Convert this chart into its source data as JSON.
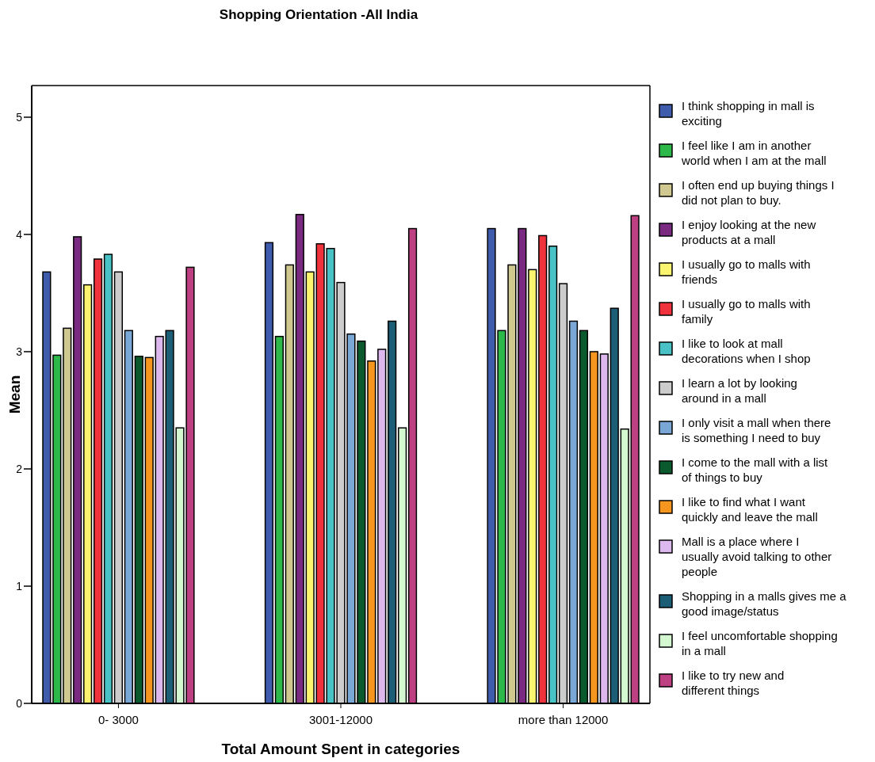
{
  "chart_data": {
    "type": "bar",
    "title": "Shopping Orientation -All India",
    "xlabel": "Total Amount Spent in categories",
    "ylabel": "Mean",
    "categories": [
      "0- 3000",
      "3001-12000",
      "more than 12000"
    ],
    "ylim": [
      0,
      5.27
    ],
    "yticks": [
      0,
      1,
      2,
      3,
      4,
      5
    ],
    "grid": false,
    "legend": "right",
    "series": [
      {
        "name": "I think shopping in mall is exciting",
        "color": "#3f5bab",
        "values": [
          3.68,
          3.93,
          4.05
        ]
      },
      {
        "name": "I feel like I am in another world when I am at the mall",
        "color": "#2db84a",
        "values": [
          2.97,
          3.13,
          3.18
        ]
      },
      {
        "name": "I often end up buying things I did not plan to buy.",
        "color": "#cfc98f",
        "values": [
          3.2,
          3.74,
          3.74
        ]
      },
      {
        "name": "I enjoy looking at the new products at a mall",
        "color": "#7a2a80",
        "values": [
          3.98,
          4.17,
          4.05
        ]
      },
      {
        "name": "I usually go to malls with friends",
        "color": "#fbf46f",
        "values": [
          3.57,
          3.68,
          3.7
        ]
      },
      {
        "name": "I usually go to malls with family",
        "color": "#f0323c",
        "values": [
          3.79,
          3.92,
          3.99
        ]
      },
      {
        "name": "I like to look at mall decorations when I shop",
        "color": "#48c2c4",
        "values": [
          3.83,
          3.88,
          3.9
        ]
      },
      {
        "name": "I learn a lot by looking around in a mall",
        "color": "#cccccc",
        "values": [
          3.68,
          3.59,
          3.58
        ]
      },
      {
        "name": "I only visit a mall when there is something I need to buy",
        "color": "#7aa8d6",
        "values": [
          3.18,
          3.15,
          3.26
        ]
      },
      {
        "name": "I come to the mall with a list of things to buy",
        "color": "#0b5a2e",
        "values": [
          2.96,
          3.09,
          3.18
        ]
      },
      {
        "name": "I like to find what I want quickly and leave the mall",
        "color": "#f7961e",
        "values": [
          2.95,
          2.92,
          3.0
        ]
      },
      {
        "name": "Mall is a place where I usually avoid talking to other people",
        "color": "#dcb8ee",
        "values": [
          3.13,
          3.02,
          2.98
        ]
      },
      {
        "name": "Shopping in a malls gives me a good image/status",
        "color": "#1c5e76",
        "values": [
          3.18,
          3.26,
          3.37
        ]
      },
      {
        "name": "I feel uncomfortable shopping in a mall",
        "color": "#d4f8d0",
        "values": [
          2.35,
          2.35,
          2.34
        ]
      },
      {
        "name": "I like to try new and different things",
        "color": "#bd4182",
        "values": [
          3.72,
          4.05,
          4.16
        ]
      }
    ]
  }
}
